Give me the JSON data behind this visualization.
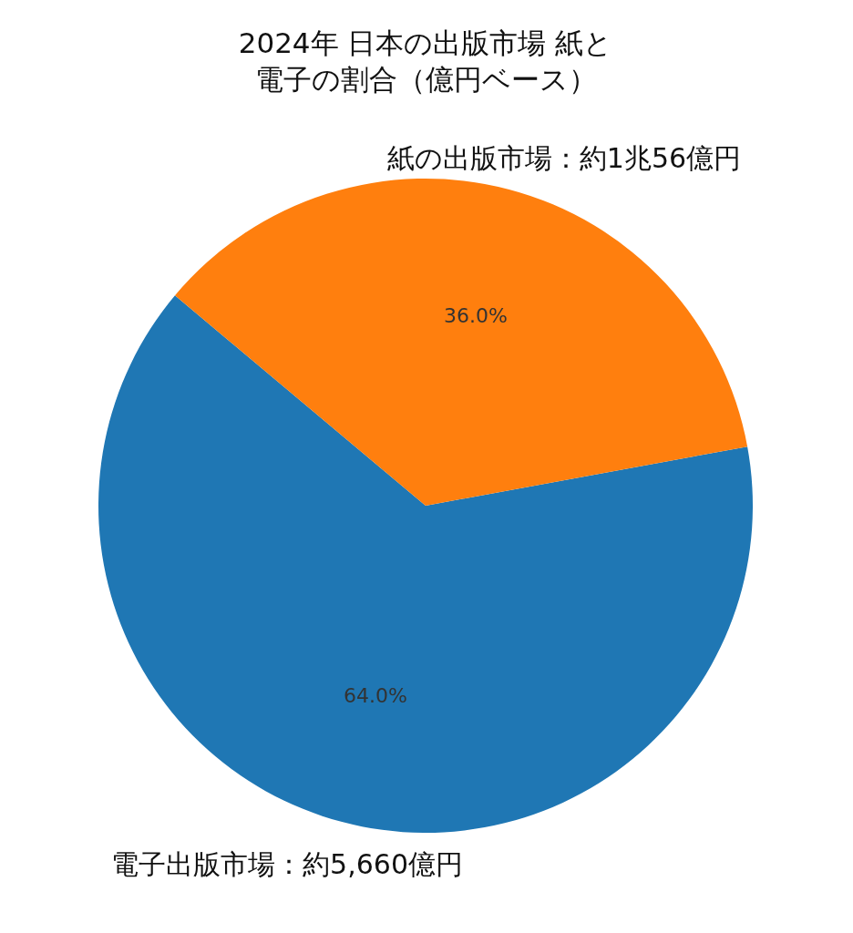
{
  "chart_data": {
    "type": "pie",
    "title": "2024年 日本の出版市場 紙と電子の割合（億円ベース）",
    "categories": [
      "電子出版市場：約5,660億円",
      "紙の出版市場：約1兆56億円"
    ],
    "values": [
      64.0,
      36.0
    ],
    "colors": [
      "#1f77b4",
      "#ff7f0e"
    ],
    "value_labels": [
      "64.0%",
      "36.0%"
    ]
  }
}
